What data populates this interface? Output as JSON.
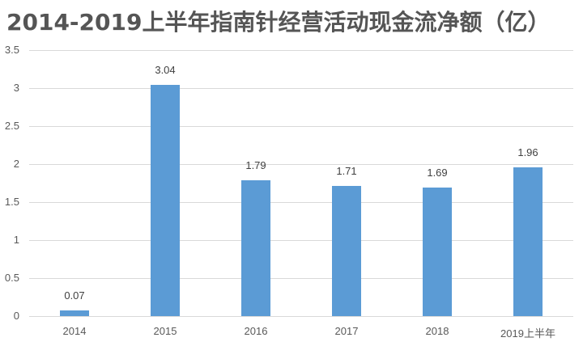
{
  "chart_data": {
    "type": "bar",
    "title": "2014-2019上半年指南针经营活动现金流净额（亿）",
    "categories": [
      "2014",
      "2015",
      "2016",
      "2017",
      "2018",
      "2019上半年"
    ],
    "values": [
      0.07,
      3.04,
      1.79,
      1.71,
      1.69,
      1.96
    ],
    "value_labels": [
      "0.07",
      "3.04",
      "1.79",
      "1.71",
      "1.69",
      "1.96"
    ],
    "xlabel": "",
    "ylabel": "",
    "ylim": [
      0,
      3.5
    ],
    "yticks": [
      "0",
      "0.5",
      "1",
      "1.5",
      "2",
      "2.5",
      "3",
      "3.5"
    ],
    "grid": true,
    "legend": "none",
    "bar_color": "#5b9bd5"
  }
}
